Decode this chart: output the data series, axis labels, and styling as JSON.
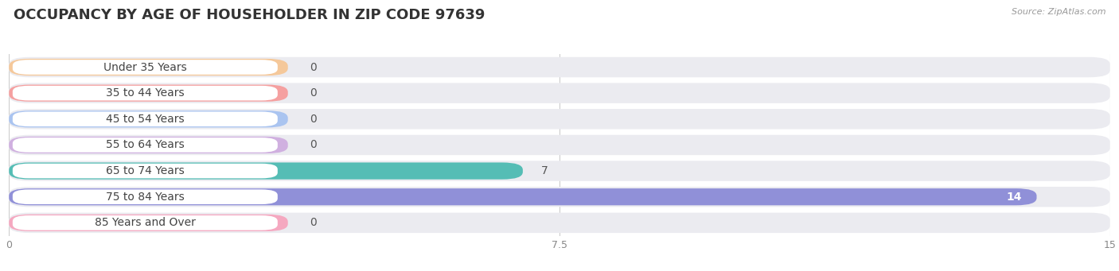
{
  "title": "OCCUPANCY BY AGE OF HOUSEHOLDER IN ZIP CODE 97639",
  "source": "Source: ZipAtlas.com",
  "categories": [
    "Under 35 Years",
    "35 to 44 Years",
    "45 to 54 Years",
    "55 to 64 Years",
    "65 to 74 Years",
    "75 to 84 Years",
    "85 Years and Over"
  ],
  "values": [
    0,
    0,
    0,
    0,
    7,
    14,
    0
  ],
  "bar_colors": [
    "#f5c89a",
    "#f5a0a0",
    "#aac4f0",
    "#d0b0e0",
    "#55bdb5",
    "#9090d8",
    "#f5a8c0"
  ],
  "xlim": [
    0,
    15
  ],
  "xticks": [
    0,
    7.5,
    15
  ],
  "title_fontsize": 13,
  "label_fontsize": 10,
  "value_fontsize": 10,
  "background_color": "#ffffff",
  "row_bg_color": "#ebebf0",
  "label_box_color": "#ffffff"
}
